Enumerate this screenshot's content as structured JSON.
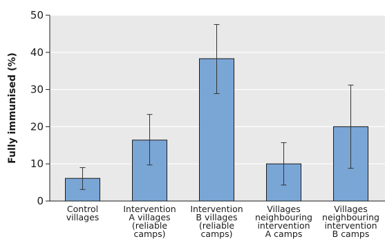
{
  "chart_data": {
    "type": "bar",
    "title": "",
    "xlabel": "",
    "ylabel": "Fully immunised (%)",
    "ylim": [
      0,
      50
    ],
    "yticks": [
      0,
      10,
      20,
      30,
      40,
      50
    ],
    "grid": true,
    "categories": [
      [
        "Control",
        "villages"
      ],
      [
        "Intervention",
        "A villages",
        "(reliable",
        "camps)"
      ],
      [
        "Intervention",
        "B villages",
        "(reliable",
        "camps)"
      ],
      [
        "Villages",
        "neighbouring",
        "intervention",
        "A camps"
      ],
      [
        "Villages",
        "neighbouring",
        "intervention",
        "B camps"
      ]
    ],
    "values": [
      6.1,
      16.4,
      38.3,
      10.0,
      20.0
    ],
    "error_low": [
      3.1,
      9.7,
      28.9,
      4.3,
      8.8
    ],
    "error_high": [
      9.0,
      23.3,
      47.5,
      15.7,
      31.2
    ],
    "colors": {
      "bar_fill": "#7aa6d6",
      "bar_stroke": "#1a1a1a",
      "plot_background": "#e9e9ea",
      "grid": "#ffffff",
      "error_bar": "#333333"
    }
  }
}
